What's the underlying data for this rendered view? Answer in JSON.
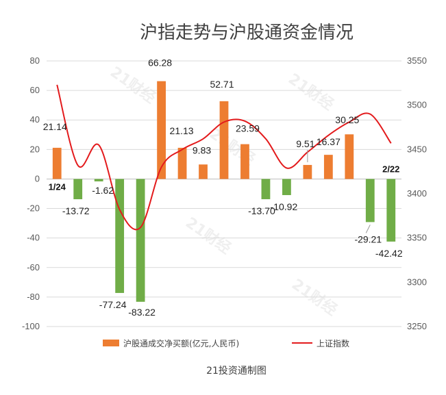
{
  "chart_data": {
    "type": "bar",
    "title": "沪指走势与沪股通资金情况",
    "footer": "21投资通制图",
    "watermark": "21财经",
    "categories": [
      "1/24",
      "",
      "",
      "",
      "",
      "",
      "",
      "",
      "",
      "",
      "",
      "",
      "",
      "",
      "",
      "",
      "2/22"
    ],
    "series": [
      {
        "name": "沪股通成交净买额(亿元,人民币)",
        "type": "bar",
        "axis": "left",
        "values": [
          21.14,
          -13.72,
          -1.62,
          -77.24,
          -83.22,
          66.28,
          21.13,
          9.83,
          52.71,
          23.59,
          -13.7,
          -10.92,
          9.51,
          16.37,
          30.25,
          -29.21,
          -42.42
        ],
        "value_labels": [
          "21.14",
          "-13.72",
          "-1.62",
          "-77.24",
          "-83.22",
          "66.28",
          "21.13",
          "9.83",
          "52.71",
          "23.59",
          "-13.70",
          "-10.92",
          "9.51",
          "16.37",
          "30.25",
          "-29.21",
          "-42.42"
        ]
      },
      {
        "name": "上证指数",
        "type": "line",
        "axis": "right",
        "values": [
          3523,
          3432,
          3455,
          3382,
          3362,
          3430,
          3450,
          3462,
          3481,
          3482,
          3462,
          3429,
          3447,
          3466,
          3481,
          3490,
          3457
        ]
      }
    ],
    "y_left": {
      "min": -100,
      "max": 80,
      "step": 20,
      "ticks": [
        "80",
        "60",
        "40",
        "20",
        "0",
        "-20",
        "-40",
        "-60",
        "-80",
        "-100"
      ]
    },
    "y_right": {
      "min": 3250,
      "max": 3550,
      "step": 50,
      "ticks": [
        "3550",
        "3500",
        "3450",
        "3400",
        "3350",
        "3300",
        "3250"
      ]
    },
    "grid": true,
    "legend_position": "bottom",
    "colors": {
      "positive": "#ED7D31",
      "negative": "#70AD47",
      "line": "#E31A1C",
      "grid": "#D9D9D9",
      "axis": "#BFBFBF"
    }
  }
}
